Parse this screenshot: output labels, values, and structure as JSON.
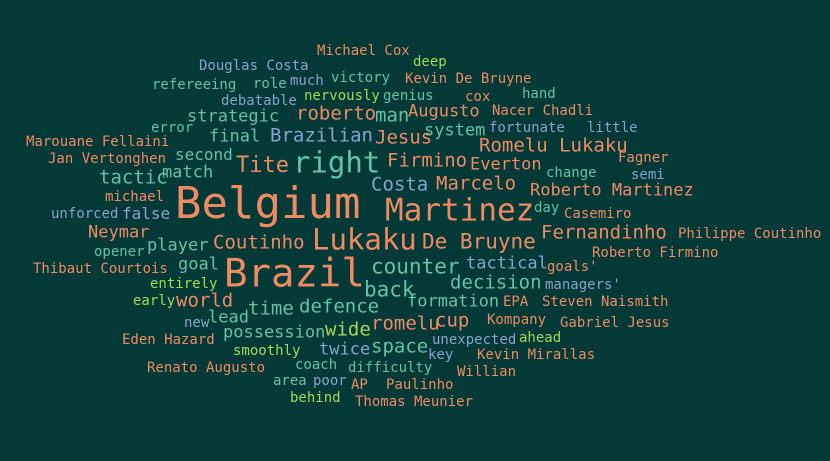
{
  "colors": {
    "background": "#033a38",
    "orange": "#ef8a62",
    "green": "#66c2a5",
    "blue": "#8da0cb",
    "lime": "#a6d854"
  },
  "words": [
    "Michael Cox",
    "deep",
    "Douglas Costa",
    "much",
    "victory",
    "Kevin De Bruyne",
    "refereeing",
    "role",
    "nervously",
    "genius",
    "cox",
    "hand",
    "debatable",
    "strategic",
    "roberto",
    "man",
    "Augusto",
    "Nacer Chadli",
    "error",
    "system",
    "fortunate",
    "little",
    "final",
    "Brazilian",
    "Jesus",
    "Marouane Fellaini",
    "Romelu Lukaku",
    "second",
    "right",
    "Firmino",
    "Everton",
    "Fagner",
    "Jan Vertonghen",
    "Tite",
    "change",
    "tactic",
    "match",
    "semi",
    "Costa",
    "Marcelo",
    "michael",
    "Belgium",
    "Roberto Martinez",
    "Martinez",
    "day",
    "unforced",
    "false",
    "Casemiro",
    "Neymar",
    "Fernandinho",
    "Philippe Coutinho",
    "Lukaku",
    "Coutinho",
    "De Bruyne",
    "player",
    "opener",
    "Roberto Firmino",
    "goal",
    "tactical",
    "Thibaut Courtois",
    "goals'",
    "counter",
    "Brazil",
    "entirely",
    "decision",
    "managers'",
    "back",
    "early",
    "world",
    "formation",
    "EPA",
    "Steven Naismith",
    "time",
    "defence",
    "lead",
    "cup",
    "new",
    "Kompany",
    "Gabriel Jesus",
    "romelu",
    "possession",
    "wide",
    "Eden Hazard",
    "unexpected",
    "ahead",
    "space",
    "smoothly",
    "twice",
    "key",
    "Kevin Mirallas",
    "coach",
    "Renato Augusto",
    "difficulty",
    "Willian",
    "area",
    "poor",
    "AP",
    "Paulinho",
    "behind",
    "Thomas Meunier"
  ]
}
